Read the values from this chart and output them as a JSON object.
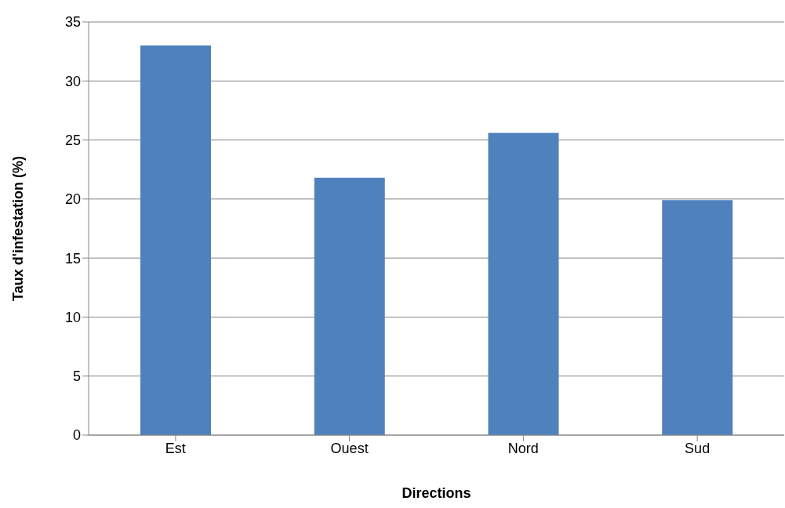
{
  "chart_data": {
    "type": "bar",
    "xlabel": "Directions",
    "ylabel": "Taux d'infestation (%)",
    "categories": [
      "Est",
      "Ouest",
      "Nord",
      "Sud"
    ],
    "values": [
      33,
      21.8,
      25.6,
      19.9
    ],
    "color": "#4f81bd",
    "ylim": [
      0,
      35
    ],
    "yticks": [
      0,
      5,
      10,
      15,
      20,
      25,
      30,
      35
    ],
    "grid": "y",
    "legend": false
  }
}
